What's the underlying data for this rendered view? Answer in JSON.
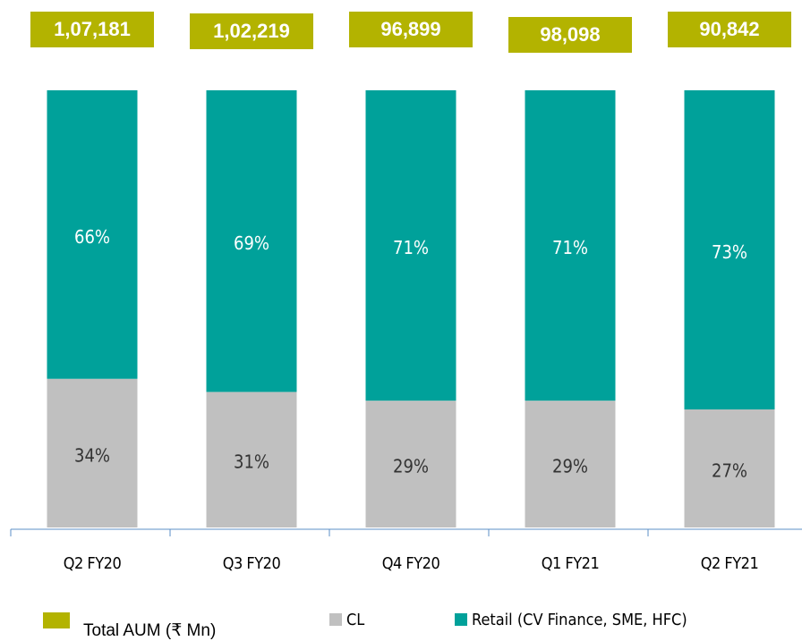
{
  "chart_data": {
    "type": "stacked_bar_100",
    "categories": [
      "Q2 FY20",
      "Q3 FY20",
      "Q4 FY20",
      "Q1 FY21",
      "Q2 FY21"
    ],
    "series": [
      {
        "name": "CL",
        "color": "#c0c0c0",
        "values": [
          34,
          31,
          29,
          29,
          27
        ],
        "value_labels": [
          "34%",
          "31%",
          "29%",
          "29%",
          "27%"
        ]
      },
      {
        "name": "Retail (CV Finance, SME, HFC)",
        "color": "#00a19a",
        "values": [
          66,
          69,
          71,
          71,
          73
        ],
        "value_labels": [
          "66%",
          "69%",
          "71%",
          "71%",
          "73%"
        ]
      }
    ],
    "totals": {
      "name": "Total AUM (₹ Mn)",
      "color": "#b3b300",
      "values": [
        107181,
        102219,
        96899,
        98098,
        90842
      ],
      "value_labels": [
        "1,07,181",
        "1,02,219",
        "96,899",
        "98,098",
        "90,842"
      ]
    }
  }
}
